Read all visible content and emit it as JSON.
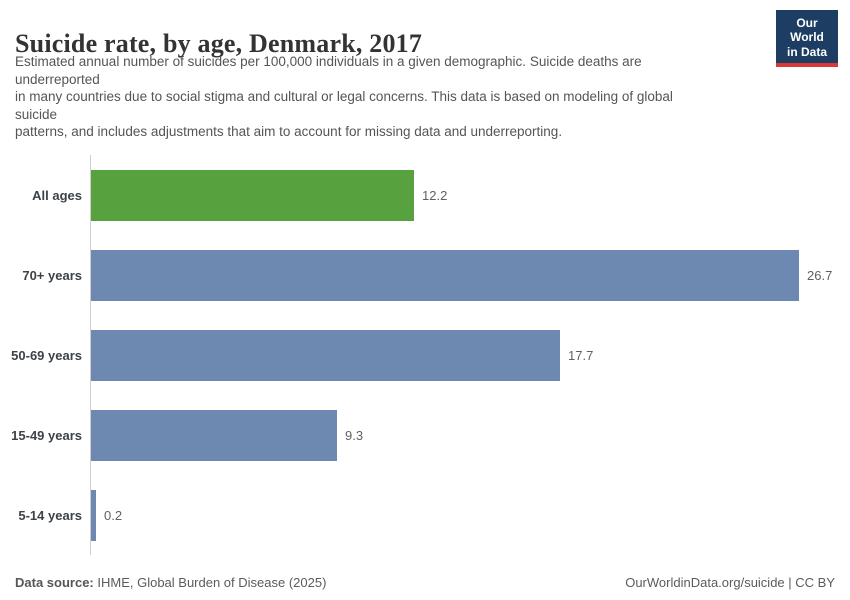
{
  "header": {
    "title": "Suicide rate, by age, Denmark, 2017",
    "subtitle_lines": [
      "Estimated annual number of suicides per 100,000 individuals in a given demographic. Suicide deaths are",
      "underreported",
      "in many countries due to social stigma and cultural or legal concerns. This data is based on modeling of global",
      "suicide",
      "patterns, and includes adjustments that aim to account for missing data and underreporting."
    ],
    "logo": {
      "line1": "Our World",
      "line2": "in Data",
      "bg_color": "#1d3d63",
      "accent_color": "#d93a37"
    }
  },
  "chart_data": {
    "type": "bar",
    "orientation": "horizontal",
    "title": "Suicide rate, by age, Denmark, 2017",
    "xlabel": "",
    "ylabel": "",
    "categories": [
      "All ages",
      "70+ years",
      "50-69 years",
      "15-49 years",
      "5-14 years"
    ],
    "values": [
      12.2,
      26.7,
      17.7,
      9.3,
      0.2
    ],
    "value_labels": [
      "12.2",
      "26.7",
      "17.7",
      "9.3",
      "0.2"
    ],
    "bar_colors": [
      "#57a13e",
      "#6e89b1",
      "#6e89b1",
      "#6e89b1",
      "#6e89b1"
    ],
    "xlim": [
      0,
      28
    ],
    "grid": false,
    "legend": false,
    "axis_line_color": "#cfcfcf"
  },
  "footer": {
    "source_label": "Data source:",
    "source_text": " IHME, Global Burden of Disease (2025)",
    "credit": "OurWorldinData.org/suicide | CC BY"
  }
}
